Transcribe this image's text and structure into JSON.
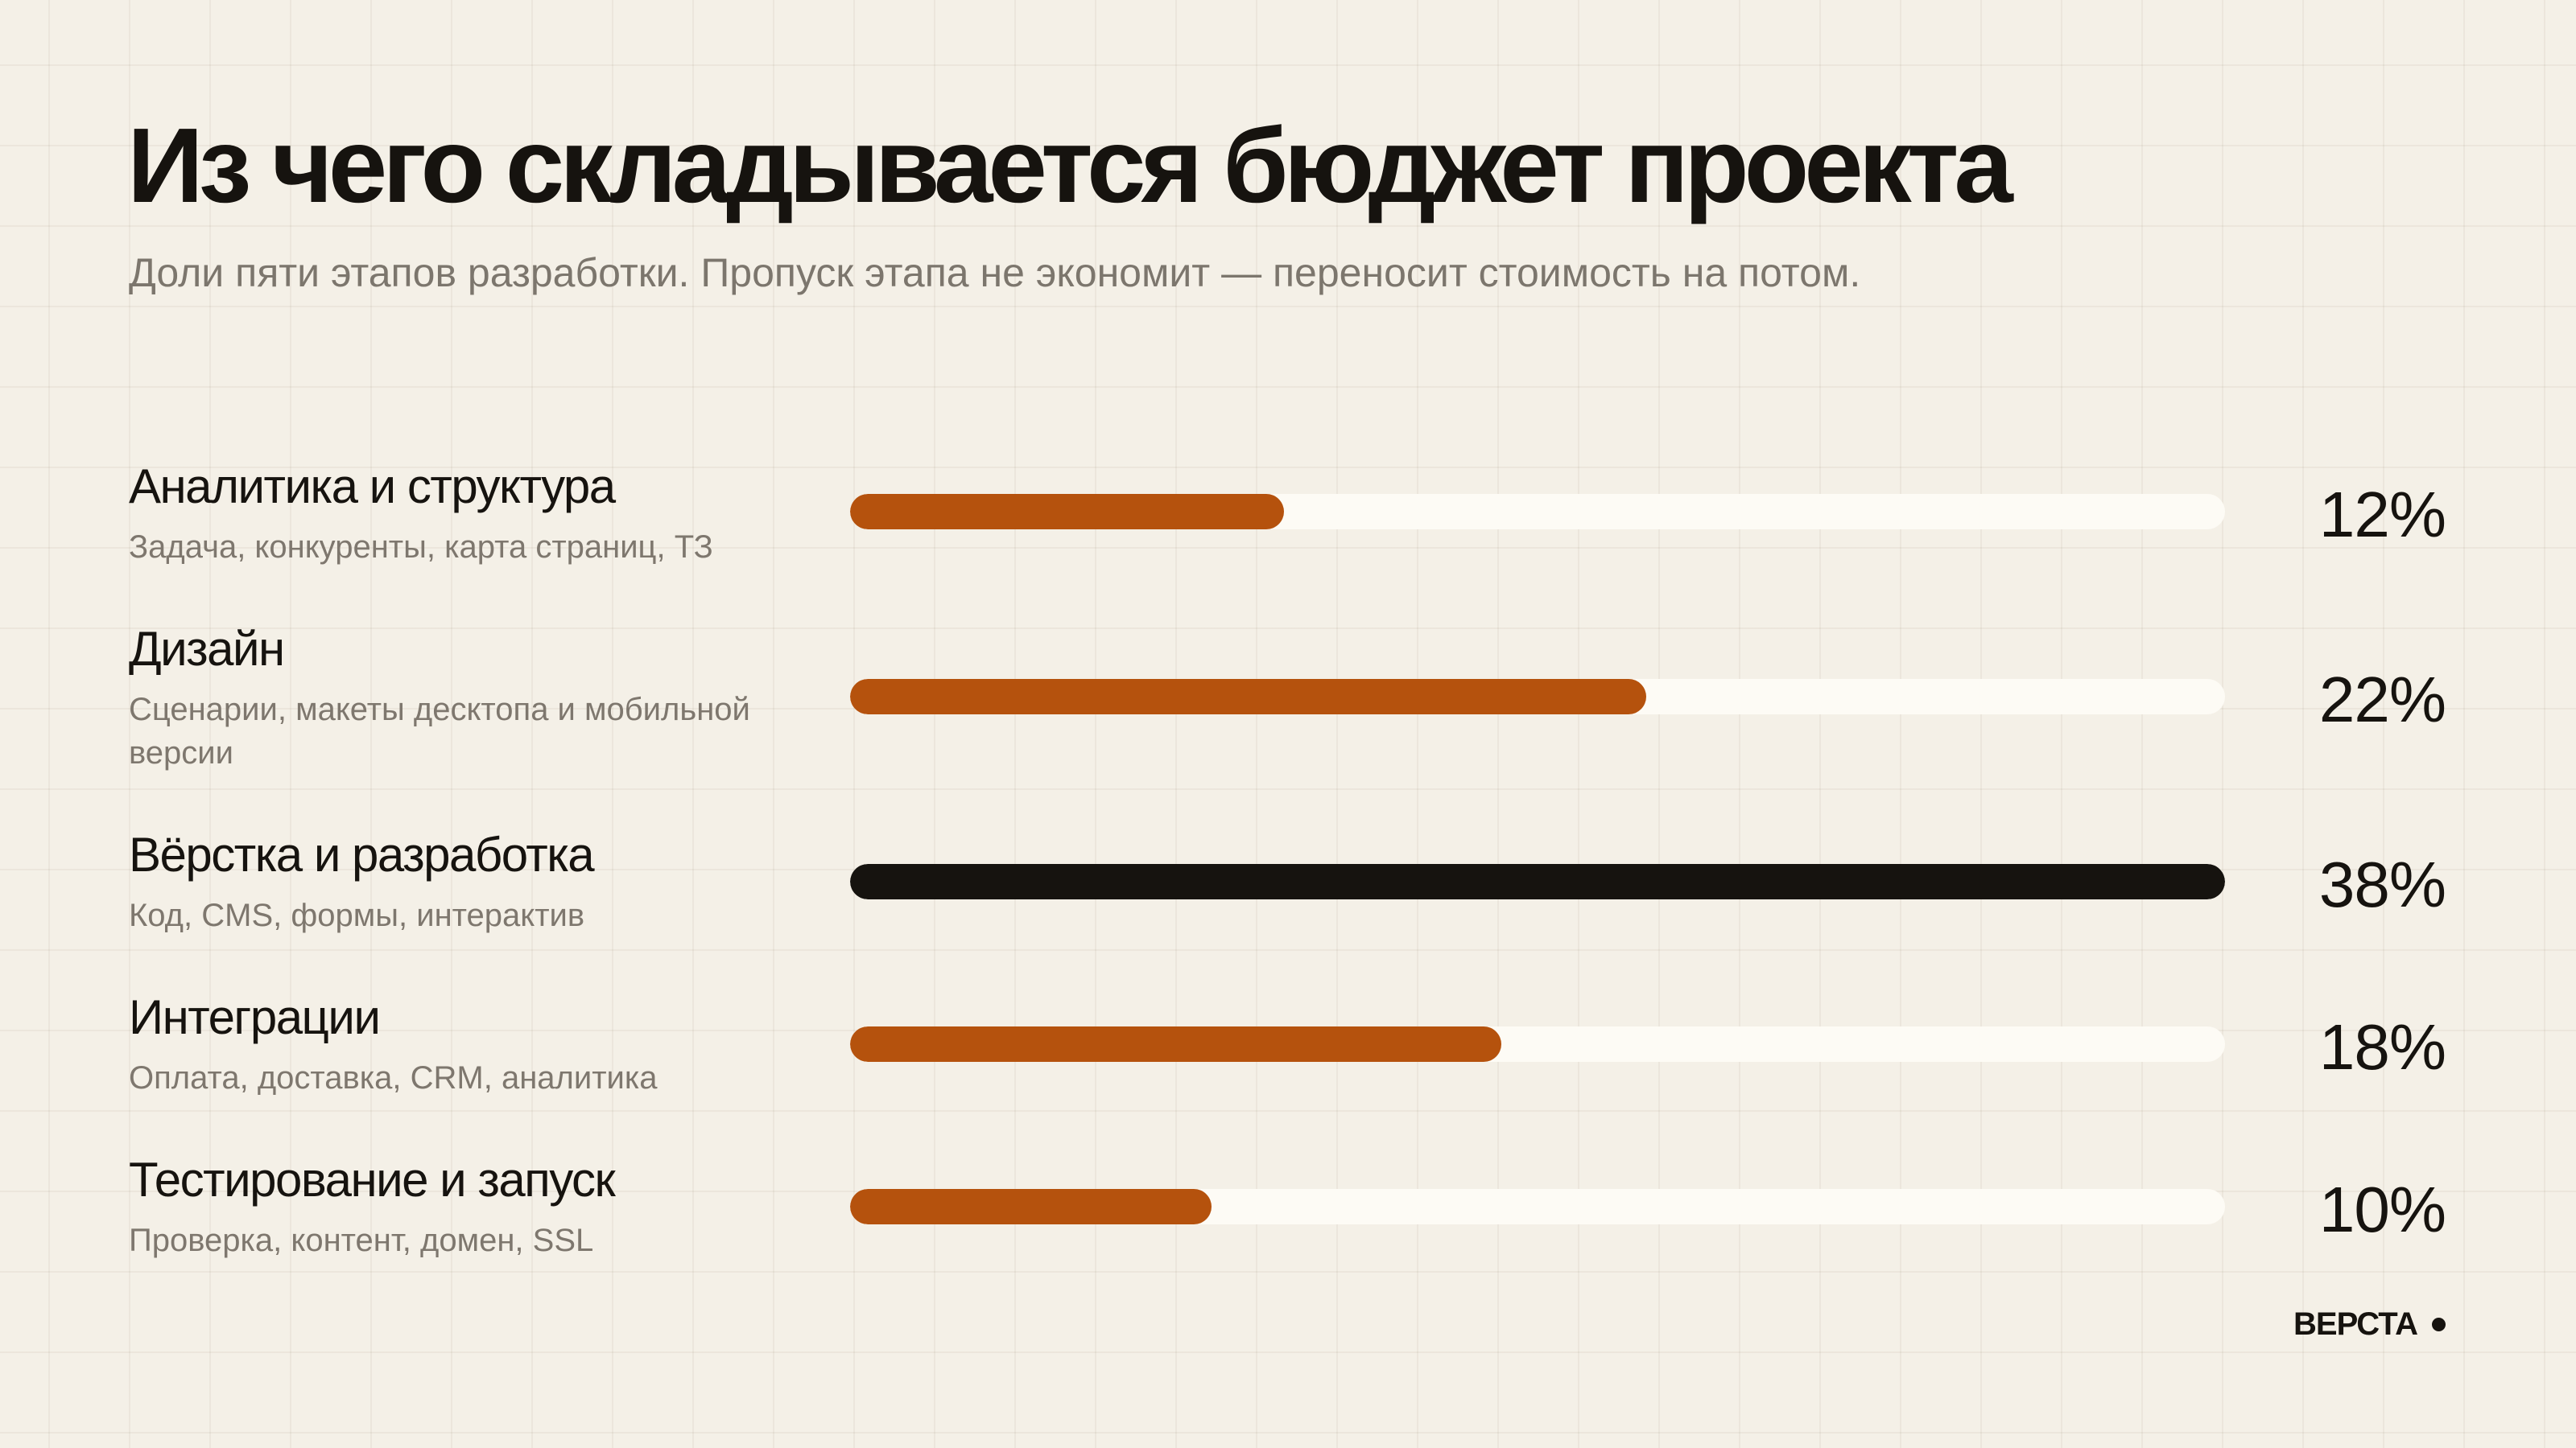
{
  "title": "Из чего складывается бюджет проекта",
  "subtitle": "Доли пяти этапов разработки. Пропуск этапа не экономит — переносит стоимость на потом.",
  "brand": "ВЕРСТА",
  "colors": {
    "background": "#f4f0e7",
    "accent": "#b5520d",
    "highlight": "#16130f",
    "track": "#fdfbf5",
    "muted_text": "#7e776e"
  },
  "chart_data": {
    "type": "bar",
    "orientation": "horizontal",
    "xlim": [
      0,
      38
    ],
    "categories": [
      "Аналитика и структура",
      "Дизайн",
      "Вёрстка и разработка",
      "Интеграции",
      "Тестирование и запуск"
    ],
    "descriptions": [
      "Задача, конкуренты, карта страниц, ТЗ",
      "Сценарии, макеты десктопа и мобильной версии",
      "Код, CMS, формы, интерактив",
      "Оплата, доставка, CRM, аналитика",
      "Проверка, контент, домен, SSL"
    ],
    "values": [
      12,
      22,
      38,
      18,
      10
    ],
    "value_labels": [
      "12%",
      "22%",
      "38%",
      "18%",
      "10%"
    ],
    "highlighted_index": 2
  }
}
